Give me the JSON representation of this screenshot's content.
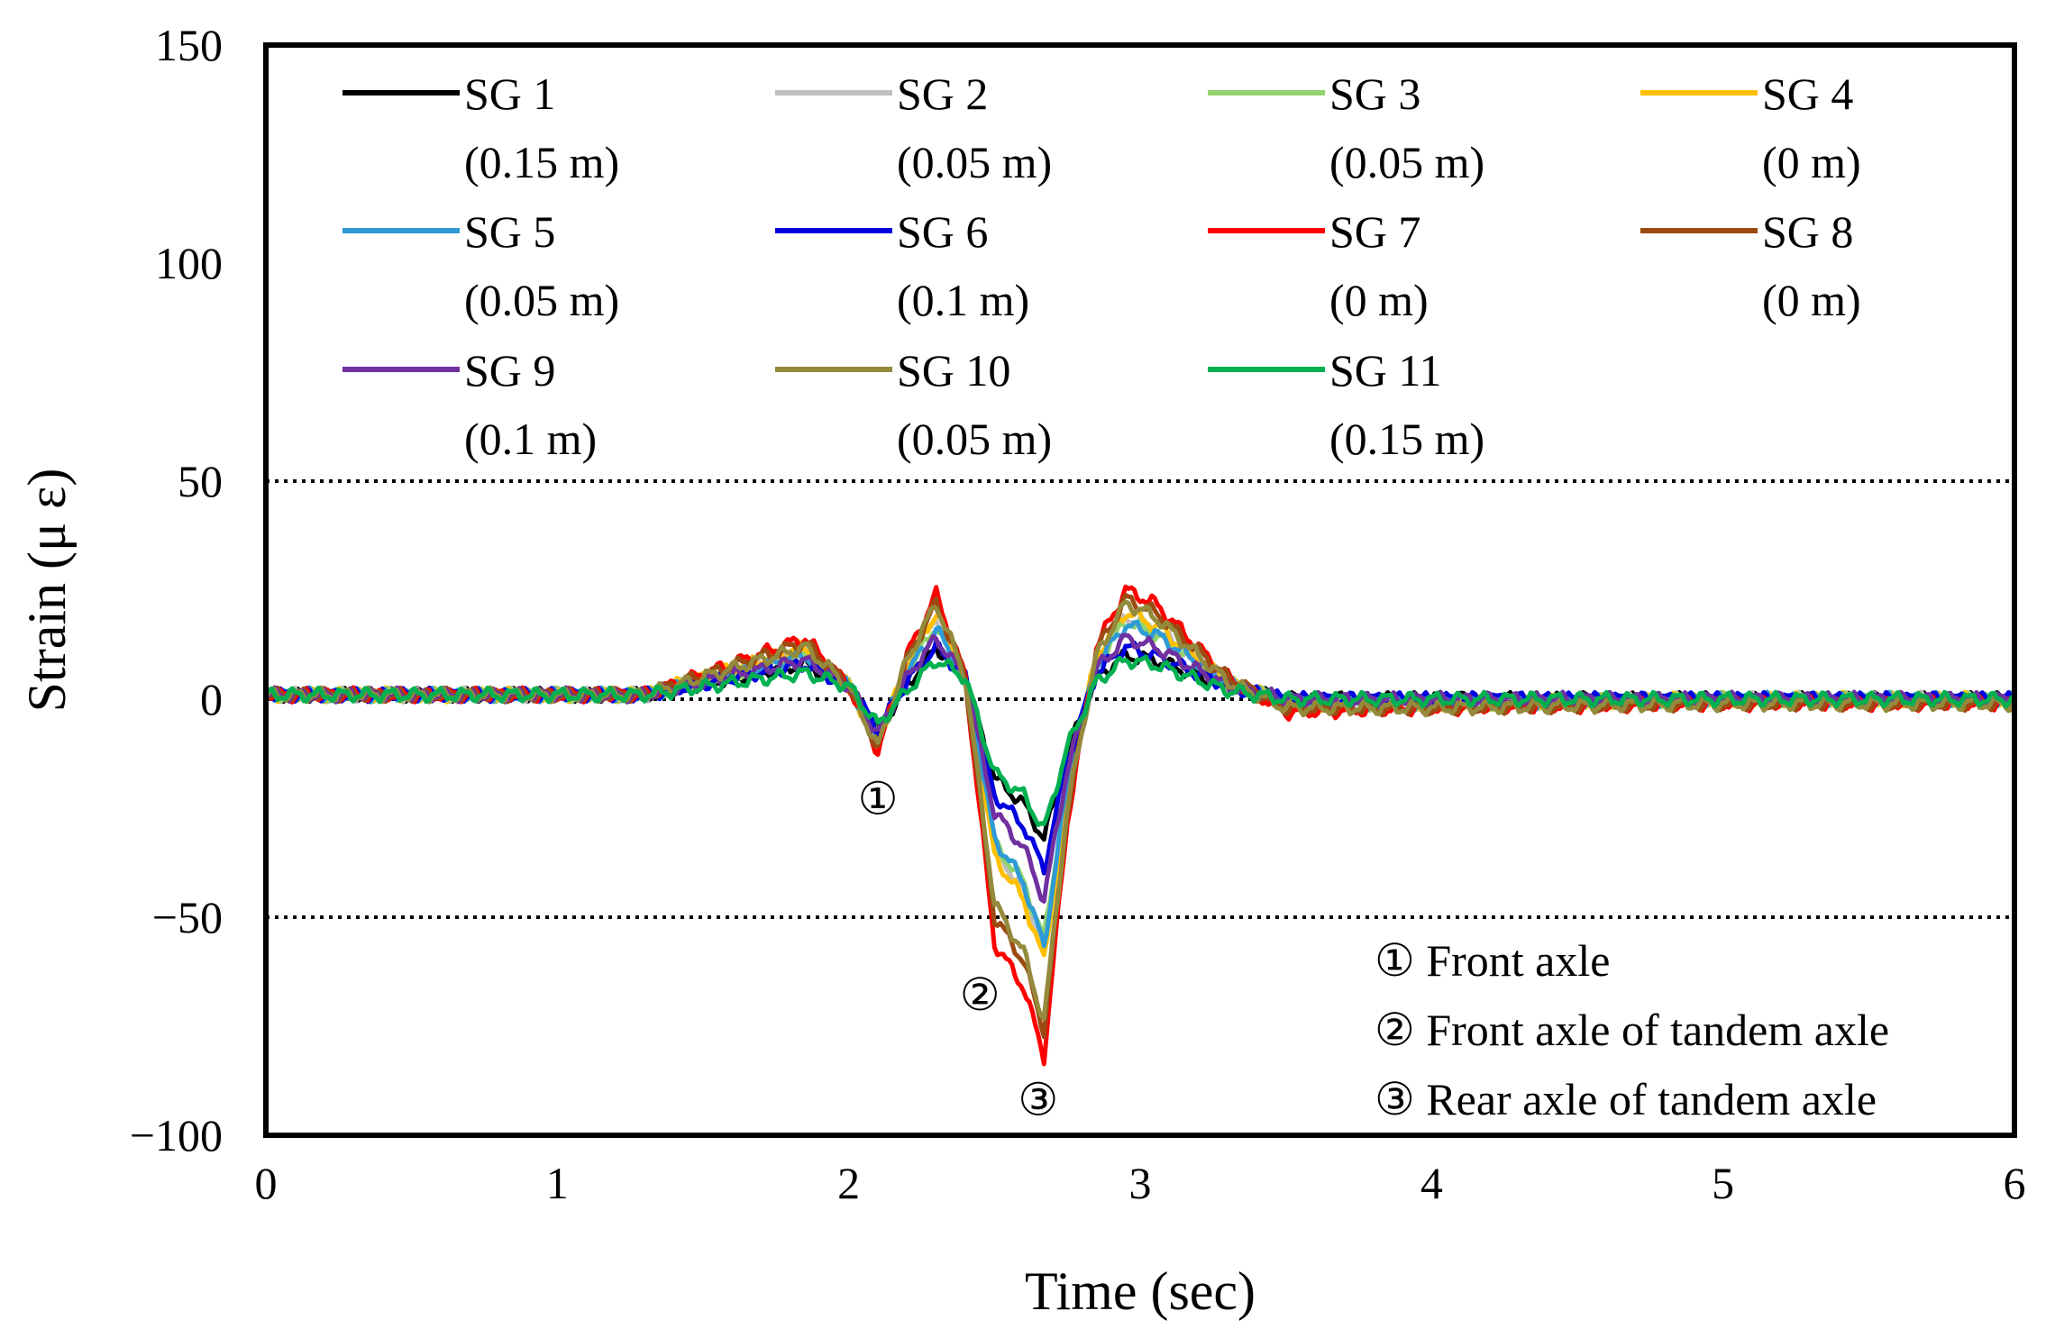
{
  "chart_data": {
    "type": "line",
    "title": "",
    "xlabel": "Time (sec)",
    "ylabel": "Strain (μ ε)",
    "xlim": [
      0,
      6
    ],
    "ylim": [
      -100,
      150
    ],
    "xticks": [
      "0",
      "1",
      "2",
      "3",
      "4",
      "5",
      "6"
    ],
    "yticks": [
      "150",
      "100",
      "50",
      "0",
      "−50",
      "−100"
    ],
    "reference_lines": [
      50,
      -50
    ],
    "legend_placement": "top (inside plot, 4 columns)",
    "series": [
      {
        "name": "SG 1",
        "position": "(0.15 m)",
        "color": "#000000",
        "x": [
          0,
          1.3,
          1.85,
          2.0,
          2.1,
          2.2,
          2.3,
          2.4,
          2.5,
          2.6,
          2.67,
          2.75,
          2.85,
          2.95,
          3.05,
          3.3,
          3.5,
          4.0,
          5.0,
          6.0
        ],
        "y": [
          1,
          1,
          8,
          3,
          -7,
          3,
          12,
          5,
          -18,
          -24,
          -32,
          -12,
          5,
          10,
          9,
          3,
          0,
          0,
          0,
          0
        ]
      },
      {
        "name": "SG 2",
        "position": "(0.05 m)",
        "color": "#bfbfbf",
        "x": [
          0,
          1.3,
          1.85,
          2.0,
          2.1,
          2.2,
          2.3,
          2.4,
          2.5,
          2.6,
          2.67,
          2.75,
          2.85,
          2.95,
          3.05,
          3.3,
          3.5,
          4.0,
          5.0,
          6.0
        ],
        "y": [
          1,
          1,
          11,
          3,
          -9,
          7,
          19,
          5,
          -34,
          -44,
          -58,
          -20,
          9,
          19,
          16,
          4,
          -1,
          -1,
          0,
          0
        ]
      },
      {
        "name": "SG 3",
        "position": "(0.05 m)",
        "color": "#92d36e",
        "x": [
          0,
          1.3,
          1.85,
          2.0,
          2.1,
          2.2,
          2.3,
          2.4,
          2.5,
          2.6,
          2.67,
          2.75,
          2.85,
          2.95,
          3.05,
          3.3,
          3.5,
          4.0,
          5.0,
          6.0
        ],
        "y": [
          1,
          1,
          10,
          3,
          -9,
          6,
          17,
          5,
          -33,
          -42,
          -55,
          -19,
          8,
          18,
          15,
          4,
          -1,
          -1,
          0,
          0
        ]
      },
      {
        "name": "SG 4",
        "position": "(0 m)",
        "color": "#ffc000",
        "x": [
          0,
          1.3,
          1.85,
          2.0,
          2.1,
          2.2,
          2.3,
          2.4,
          2.5,
          2.6,
          2.67,
          2.75,
          2.85,
          2.95,
          3.05,
          3.3,
          3.5,
          4.0,
          5.0,
          6.0
        ],
        "y": [
          1,
          1,
          12,
          3,
          -10,
          8,
          20,
          5,
          -36,
          -46,
          -60,
          -21,
          10,
          20,
          17,
          4,
          -1,
          -1,
          0,
          0
        ]
      },
      {
        "name": "SG 5",
        "position": "(0.05 m)",
        "color": "#2e9bd6",
        "x": [
          0,
          1.3,
          1.85,
          2.0,
          2.1,
          2.2,
          2.3,
          2.4,
          2.5,
          2.6,
          2.67,
          2.75,
          2.85,
          2.95,
          3.05,
          3.3,
          3.5,
          4.0,
          5.0,
          6.0
        ],
        "y": [
          1,
          1,
          10,
          3,
          -9,
          6,
          16,
          5,
          -32,
          -42,
          -57,
          -19,
          8,
          17,
          15,
          4,
          -1,
          -1,
          0,
          0
        ]
      },
      {
        "name": "SG 6",
        "position": "(0.1 m)",
        "color": "#0000e0",
        "x": [
          0,
          1.3,
          1.85,
          2.0,
          2.1,
          2.2,
          2.3,
          2.4,
          2.5,
          2.6,
          2.67,
          2.75,
          2.85,
          2.95,
          3.05,
          3.3,
          3.5,
          4.0,
          5.0,
          6.0
        ],
        "y": [
          1,
          1,
          8,
          3,
          -7,
          4,
          12,
          5,
          -22,
          -29,
          -39,
          -14,
          6,
          12,
          10,
          3,
          0,
          0,
          0,
          0
        ]
      },
      {
        "name": "SG 7",
        "position": "(0 m)",
        "color": "#ff0000",
        "x": [
          0,
          1.3,
          1.85,
          2.0,
          2.1,
          2.2,
          2.3,
          2.4,
          2.5,
          2.6,
          2.67,
          2.75,
          2.85,
          2.95,
          3.05,
          3.3,
          3.5,
          4.0,
          5.0,
          6.0
        ],
        "y": [
          1,
          1,
          14,
          3,
          -12,
          10,
          24,
          5,
          -56,
          -66,
          -82,
          -28,
          12,
          25,
          22,
          5,
          -3,
          -2,
          -1,
          -1
        ]
      },
      {
        "name": "SG 8",
        "position": "(0 m)",
        "color": "#9c4a12",
        "x": [
          0,
          1.3,
          1.85,
          2.0,
          2.1,
          2.2,
          2.3,
          2.4,
          2.5,
          2.6,
          2.67,
          2.75,
          2.85,
          2.95,
          3.05,
          3.3,
          3.5,
          4.0,
          5.0,
          6.0
        ],
        "y": [
          1,
          1,
          13,
          3,
          -11,
          9,
          22,
          5,
          -50,
          -60,
          -76,
          -26,
          11,
          23,
          20,
          5,
          -2,
          -2,
          -1,
          -1
        ]
      },
      {
        "name": "SG 9",
        "position": "(0.1 m)",
        "color": "#7030a0",
        "x": [
          0,
          1.3,
          1.85,
          2.0,
          2.1,
          2.2,
          2.3,
          2.4,
          2.5,
          2.6,
          2.67,
          2.75,
          2.85,
          2.95,
          3.05,
          3.3,
          3.5,
          4.0,
          5.0,
          6.0
        ],
        "y": [
          1,
          1,
          9,
          3,
          -8,
          5,
          14,
          5,
          -26,
          -34,
          -46,
          -16,
          7,
          14,
          12,
          3,
          0,
          0,
          0,
          0
        ]
      },
      {
        "name": "SG 10",
        "position": "(0.05 m)",
        "color": "#948a3c",
        "x": [
          0,
          1.3,
          1.85,
          2.0,
          2.1,
          2.2,
          2.3,
          2.4,
          2.5,
          2.6,
          2.67,
          2.75,
          2.85,
          2.95,
          3.05,
          3.3,
          3.5,
          4.0,
          5.0,
          6.0
        ],
        "y": [
          1,
          1,
          12,
          3,
          -11,
          9,
          22,
          5,
          -47,
          -58,
          -74,
          -25,
          10,
          22,
          19,
          4,
          -2,
          -2,
          -1,
          -1
        ]
      },
      {
        "name": "SG 11",
        "position": "(0.15 m)",
        "color": "#00b050",
        "x": [
          0,
          1.3,
          1.85,
          2.0,
          2.1,
          2.2,
          2.3,
          2.4,
          2.5,
          2.6,
          2.67,
          2.75,
          2.85,
          2.95,
          3.05,
          3.3,
          3.5,
          4.0,
          5.0,
          6.0
        ],
        "y": [
          1,
          1,
          6,
          3,
          -6,
          2,
          9,
          5,
          -17,
          -22,
          -30,
          -11,
          4,
          9,
          8,
          2,
          0,
          0,
          0,
          0
        ]
      }
    ],
    "annotations": [
      {
        "marker": "①",
        "label": "Front axle",
        "x": 2.1,
        "y": -23
      },
      {
        "marker": "②",
        "label": "Front axle of tandem axle",
        "x": 2.45,
        "y": -68
      },
      {
        "marker": "③",
        "label": "Rear axle of tandem axle",
        "x": 2.65,
        "y": -92
      }
    ],
    "annotation_legend": [
      "① Front axle",
      "② Front axle of tandem axle",
      "③ Rear axle of tandem axle"
    ]
  }
}
